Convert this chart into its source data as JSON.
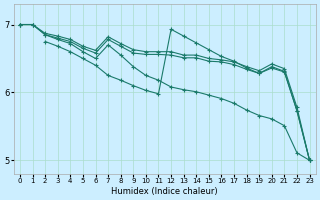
{
  "xlabel": "Humidex (Indice chaleur)",
  "background_color": "#cceeff",
  "grid_color": "#aaddcc",
  "line_color": "#1a7a6a",
  "xlim": [
    -0.5,
    23.5
  ],
  "ylim": [
    4.8,
    7.3
  ],
  "yticks": [
    5,
    6,
    7
  ],
  "xticks": [
    0,
    1,
    2,
    3,
    4,
    5,
    6,
    7,
    8,
    9,
    10,
    11,
    12,
    13,
    14,
    15,
    16,
    17,
    18,
    19,
    20,
    21,
    22,
    23
  ],
  "series1_x": [
    0,
    1,
    2,
    3,
    4,
    5,
    6,
    7,
    8,
    9,
    10,
    11,
    12,
    13,
    14,
    15,
    16,
    17,
    18,
    19,
    20,
    21,
    22,
    23
  ],
  "series1_y": [
    7.0,
    7.0,
    6.87,
    6.83,
    6.78,
    6.68,
    6.62,
    6.82,
    6.72,
    6.63,
    6.6,
    6.6,
    6.6,
    6.55,
    6.55,
    6.5,
    6.48,
    6.45,
    6.38,
    6.32,
    6.42,
    6.35,
    5.78,
    5.0
  ],
  "series2_x": [
    0,
    1,
    2,
    3,
    4,
    5,
    6,
    7,
    8,
    9,
    10,
    11,
    12,
    13,
    14,
    15,
    16,
    17,
    18,
    19,
    20,
    21,
    22,
    23
  ],
  "series2_y": [
    7.0,
    7.0,
    6.85,
    6.8,
    6.75,
    6.65,
    6.58,
    6.78,
    6.68,
    6.58,
    6.56,
    6.56,
    6.55,
    6.51,
    6.51,
    6.46,
    6.45,
    6.41,
    6.34,
    6.28,
    6.38,
    6.31,
    5.73,
    5.0
  ],
  "series3_x": [
    2,
    3,
    4,
    5,
    6,
    7,
    8,
    9,
    10,
    11,
    12,
    13,
    14,
    15,
    16,
    17,
    18,
    19,
    20,
    21,
    22,
    23
  ],
  "series3_y": [
    6.75,
    6.68,
    6.6,
    6.5,
    6.4,
    6.25,
    6.18,
    6.1,
    6.03,
    5.98,
    6.93,
    6.83,
    6.73,
    6.63,
    6.53,
    6.46,
    6.36,
    6.28,
    6.36,
    6.3,
    5.73,
    5.0
  ],
  "series4_x": [
    0,
    1,
    2,
    3,
    4,
    5,
    6,
    7,
    8,
    9,
    10,
    11,
    12,
    13,
    14,
    15,
    16,
    17,
    18,
    19,
    20,
    21,
    22,
    23
  ],
  "series4_y": [
    7.0,
    7.0,
    6.85,
    6.78,
    6.72,
    6.6,
    6.5,
    6.7,
    6.55,
    6.38,
    6.25,
    6.18,
    6.08,
    6.04,
    6.01,
    5.96,
    5.91,
    5.84,
    5.74,
    5.66,
    5.61,
    5.51,
    5.11,
    5.0
  ]
}
